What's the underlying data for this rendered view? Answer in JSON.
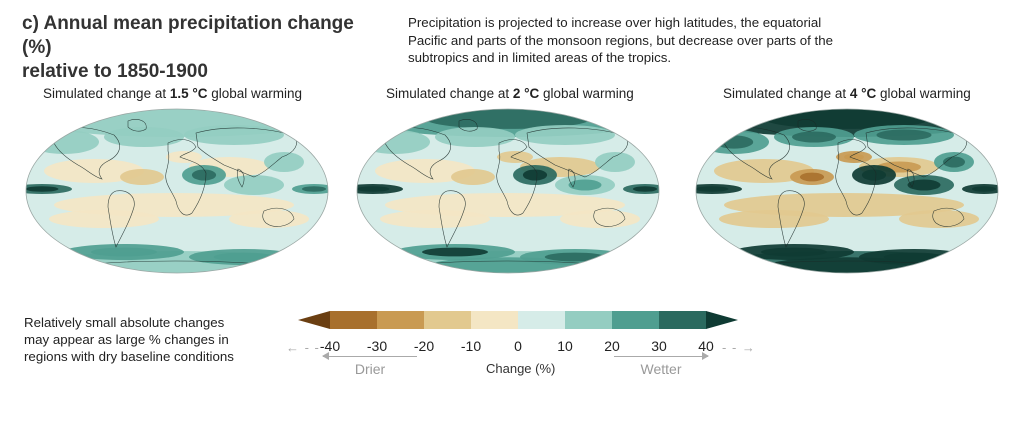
{
  "panel": {
    "title_line1": "c) Annual mean precipitation change (%)",
    "title_line2": "relative to 1850-1900",
    "description_line1": "Precipitation is projected to increase over high latitudes, the equatorial",
    "description_line2": "Pacific and parts of the monsoon regions, but decrease over parts of the",
    "description_line3": "subtropics and in limited areas of the tropics."
  },
  "maps": [
    {
      "label_prefix": "Simulated change at ",
      "level": "1.5 °C",
      "label_suffix": " global warming",
      "intensity": 1.0
    },
    {
      "label_prefix": "Simulated change at ",
      "level": "2 °C",
      "label_suffix": " global warming",
      "intensity": 1.35
    },
    {
      "label_prefix": "Simulated change at ",
      "level": "4 °C",
      "label_suffix": " global warming",
      "intensity": 2.3
    }
  ],
  "note": {
    "line1": "Relatively small absolute changes",
    "line2": "may appear as large % changes in",
    "line3": "regions with dry baseline conditions"
  },
  "legend": {
    "ticks": [
      "-40",
      "-30",
      "-20",
      "-10",
      "0",
      "10",
      "20",
      "30",
      "40"
    ],
    "axis_title": "Change (%)",
    "drier_label": "Drier",
    "wetter_label": "Wetter",
    "colors": [
      "#6b3f12",
      "#a8702d",
      "#c99a52",
      "#e2c98f",
      "#f4e6c4",
      "#d6ece8",
      "#94cdc1",
      "#4f9e90",
      "#2b6a5f",
      "#0f3b33"
    ]
  }
}
